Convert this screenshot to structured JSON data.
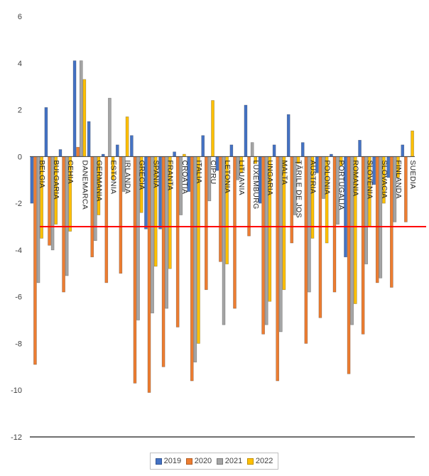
{
  "chart_data": {
    "type": "bar",
    "categories": [
      "BELGIA",
      "BULGARIA",
      "CEHIA",
      "DANEMARCA",
      "GERMANIA",
      "ESTONIA",
      "IRLANDA",
      "GRECIA",
      "SPANIA",
      "FRANTA",
      "CROATIA",
      "ITALIA",
      "CIPRU",
      "LETONIA",
      "LITUANIA",
      "LUXEMBURG",
      "UNGARIA",
      "MALTA",
      "ȚĂRILE DE JOS",
      "AUSTRIA",
      "POLONIA",
      "PORTUGALIA",
      "ROMANIA",
      "SLOVENIA",
      "SLOVACIA",
      "FINLANDA",
      "SUEDIA"
    ],
    "series": [
      {
        "name": "2019",
        "color": "#4472c4",
        "values": [
          -2.0,
          2.1,
          0.3,
          4.1,
          1.5,
          0.1,
          0.5,
          0.9,
          -3.1,
          -3.1,
          0.2,
          -1.5,
          0.9,
          -0.6,
          0.5,
          2.2,
          -2.0,
          0.5,
          1.8,
          0.6,
          -0.7,
          0.1,
          -4.3,
          0.7,
          -1.2,
          -0.9,
          0.5
        ]
      },
      {
        "name": "2020",
        "color": "#ed7d31",
        "values": [
          -8.9,
          -3.8,
          -5.8,
          0.4,
          -4.3,
          -5.4,
          -5.0,
          -9.7,
          -10.1,
          -9.0,
          -7.3,
          -9.6,
          -5.7,
          -4.5,
          -6.5,
          -3.4,
          -7.6,
          -9.6,
          -3.7,
          -8.0,
          -6.9,
          -5.8,
          -9.3,
          -7.6,
          -5.4,
          -5.6,
          -2.8
        ]
      },
      {
        "name": "2021",
        "color": "#a5a5a5",
        "values": [
          -5.4,
          -4.0,
          -5.1,
          4.1,
          -3.6,
          2.5,
          -1.5,
          -7.0,
          -6.7,
          -6.5,
          -2.5,
          -8.8,
          -1.9,
          -7.2,
          -1.0,
          0.6,
          -7.2,
          -7.5,
          -2.5,
          -5.8,
          -1.8,
          -2.9,
          -7.2,
          -4.6,
          -5.2,
          -2.8,
          0.0
        ]
      },
      {
        "name": "2022",
        "color": "#ffc000",
        "values": [
          -3.5,
          -2.9,
          -3.2,
          3.3,
          -2.5,
          -1.0,
          1.7,
          -2.4,
          -4.7,
          -4.8,
          0.1,
          -8.0,
          2.4,
          -4.6,
          -0.7,
          -0.3,
          -6.2,
          -5.7,
          -0.3,
          -3.5,
          -3.7,
          -0.4,
          -6.3,
          -3.0,
          -2.0,
          -0.9,
          1.1
        ]
      }
    ],
    "ylim": [
      -12,
      6
    ],
    "yticks": [
      "-12",
      "-10",
      "-8",
      "-6",
      "-4",
      "-2",
      "0",
      "2",
      "4",
      "6"
    ],
    "reference_line": {
      "value": -3,
      "color": "#ff0000"
    },
    "grid": false,
    "legend_position": "bottom",
    "title": "",
    "xlabel": "",
    "ylabel": ""
  }
}
